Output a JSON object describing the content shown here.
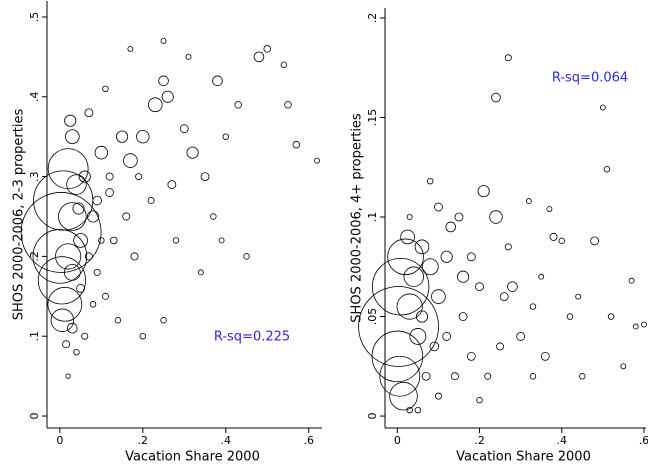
{
  "chart_data": [
    {
      "type": "scatter",
      "y_label": "SHOS 2000-2006, 2-3 properties",
      "x_label": "Vacation Share 2000",
      "annotation": "R-sq=0.225",
      "xlim": [
        -0.031,
        0.632
      ],
      "ylim": [
        -0.015,
        0.52
      ],
      "xticks": [
        {
          "value": 0,
          "label": "0"
        },
        {
          "value": 0.2,
          "label": ".2"
        },
        {
          "value": 0.4,
          "label": ".4"
        },
        {
          "value": 0.6,
          "label": ".6"
        }
      ],
      "yticks": [
        0,
        {
          "value": 0.1,
          "label": ".1"
        },
        {
          "value": 0.2,
          "label": ".2"
        },
        {
          "value": 0.3,
          "label": ".3"
        },
        {
          "value": 0.4,
          "label": ".4"
        },
        {
          "value": 0.5,
          "label": ".5"
        }
      ],
      "color": "#000000",
      "x": [
        0.003,
        0.008,
        0,
        0.02,
        0.005,
        0.012,
        0.03,
        0.006,
        0.02,
        0.04,
        0.03,
        0.025,
        0.05,
        0.06,
        0.08,
        0.1,
        0.12,
        0.15,
        0.17,
        0.2,
        0.23,
        0.25,
        0.26,
        0.27,
        0.3,
        0.32,
        0.35,
        0.37,
        0.38,
        0.4,
        0.43,
        0.45,
        0.48,
        0.5,
        0.54,
        0.55,
        0.57,
        0.62,
        0.17,
        0.25,
        0.31,
        0.11,
        0.07,
        0.09,
        0.11,
        0.14,
        0.2,
        0.25,
        0.28,
        0.18,
        0.13,
        0.06,
        0.04,
        0.02,
        0.08,
        0.16,
        0.22,
        0.34,
        0.39,
        0.05,
        0.07,
        0.09,
        0.03,
        0.015,
        0.1,
        0.12,
        0.19,
        0.03,
        0.045
      ],
      "y": [
        0.23,
        0.27,
        0.2,
        0.31,
        0.17,
        0.14,
        0.25,
        0.12,
        0.2,
        0.29,
        0.35,
        0.37,
        0.22,
        0.3,
        0.25,
        0.33,
        0.28,
        0.35,
        0.32,
        0.35,
        0.39,
        0.42,
        0.4,
        0.29,
        0.36,
        0.33,
        0.3,
        0.25,
        0.42,
        0.35,
        0.39,
        0.2,
        0.45,
        0.46,
        0.44,
        0.39,
        0.34,
        0.32,
        0.46,
        0.47,
        0.45,
        0.41,
        0.38,
        0.18,
        0.15,
        0.12,
        0.1,
        0.12,
        0.22,
        0.2,
        0.22,
        0.1,
        0.08,
        0.05,
        0.14,
        0.25,
        0.27,
        0.18,
        0.22,
        0.16,
        0.2,
        0.27,
        0.11,
        0.09,
        0.22,
        0.3,
        0.3,
        0.18,
        0.26
      ],
      "sizes": [
        100,
        55,
        45,
        25,
        35,
        18,
        12,
        8,
        10,
        6,
        3,
        2,
        3,
        2,
        2,
        2.5,
        1,
        2,
        3,
        2.5,
        3,
        1.5,
        2,
        1,
        1,
        2,
        1,
        0.5,
        1.5,
        0.5,
        0.7,
        0.5,
        1.5,
        0.7,
        0.5,
        0.7,
        0.7,
        0.4,
        0.4,
        0.4,
        0.4,
        0.5,
        1,
        0.6,
        0.6,
        0.5,
        0.5,
        0.5,
        0.5,
        0.8,
        0.7,
        0.6,
        0.5,
        0.3,
        0.5,
        0.8,
        0.6,
        0.4,
        0.4,
        1,
        0.8,
        1.2,
        1.5,
        0.8,
        0.5,
        0.8,
        0.6,
        4,
        2
      ]
    },
    {
      "type": "scatter",
      "y_label": "SHOS 2000-2006, 4+ properties",
      "x_label": "Vacation Share 2000",
      "annotation": "R-sq=0.064",
      "xlim": [
        -0.03,
        0.605
      ],
      "ylim": [
        -0.006,
        0.205
      ],
      "xticks": [
        {
          "value": 0,
          "label": "0"
        },
        {
          "value": 0.2,
          "label": ".2"
        },
        {
          "value": 0.4,
          "label": ".4"
        },
        {
          "value": 0.6,
          "label": ".6"
        }
      ],
      "yticks": [
        0,
        {
          "value": 0.05,
          "label": ".05"
        },
        {
          "value": 0.1,
          "label": ".1"
        },
        {
          "value": 0.15,
          "label": ".15"
        },
        {
          "value": 0.2,
          "label": ".2"
        }
      ],
      "color": "#000000",
      "x": [
        0.003,
        0.008,
        0,
        0.02,
        0.006,
        0.03,
        0.015,
        0.04,
        0.025,
        0.05,
        0.06,
        0.08,
        0.1,
        0.12,
        0.13,
        0.15,
        0.16,
        0.18,
        0.2,
        0.21,
        0.24,
        0.26,
        0.24,
        0.27,
        0.28,
        0.3,
        0.32,
        0.33,
        0.36,
        0.37,
        0.38,
        0.4,
        0.42,
        0.45,
        0.48,
        0.5,
        0.51,
        0.52,
        0.55,
        0.57,
        0.58,
        0.6,
        0.08,
        0.1,
        0.03,
        0.12,
        0.14,
        0.18,
        0.22,
        0.25,
        0.2,
        0.1,
        0.07,
        0.09,
        0.16,
        0.33,
        0.27,
        0.35,
        0.44,
        0.05,
        0.03,
        0.06
      ],
      "y": [
        0.045,
        0.065,
        0.03,
        0.08,
        0.02,
        0.055,
        0.01,
        0.07,
        0.09,
        0.04,
        0.085,
        0.075,
        0.06,
        0.08,
        0.095,
        0.1,
        0.07,
        0.08,
        0.065,
        0.113,
        0.1,
        0.06,
        0.16,
        0.18,
        0.065,
        0.04,
        0.108,
        0.02,
        0.03,
        0.104,
        0.09,
        0.088,
        0.05,
        0.02,
        0.088,
        0.155,
        0.124,
        0.05,
        0.025,
        0.068,
        0.045,
        0.046,
        0.118,
        0.105,
        0.1,
        0.04,
        0.02,
        0.03,
        0.02,
        0.035,
        0.008,
        0.01,
        0.02,
        0.035,
        0.05,
        0.055,
        0.085,
        0.07,
        0.06,
        0.003,
        0.003,
        0.05
      ],
      "sizes": [
        100,
        50,
        40,
        20,
        25,
        10,
        12,
        6,
        3,
        4,
        3,
        4,
        3,
        2,
        1.5,
        1,
        2,
        1,
        1,
        2,
        2.5,
        1,
        1.2,
        0.6,
        1.5,
        1,
        0.4,
        0.5,
        1,
        0.4,
        0.8,
        0.5,
        0.5,
        0.5,
        1,
        0.4,
        0.5,
        0.5,
        0.4,
        0.4,
        0.4,
        0.4,
        0.5,
        1,
        0.4,
        1,
        0.8,
        1,
        0.6,
        0.8,
        0.5,
        0.6,
        1,
        1.2,
        1,
        0.5,
        0.6,
        0.4,
        0.4,
        0.5,
        0.5,
        2
      ]
    }
  ]
}
